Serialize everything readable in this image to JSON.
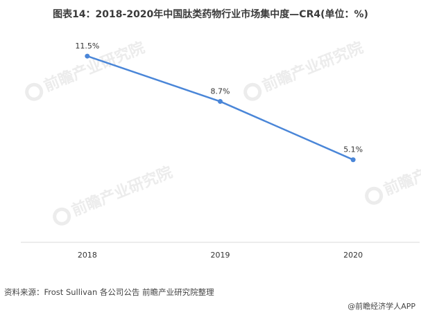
{
  "title": "图表14：2018-2020年中国肽类药物行业市场集中度—CR4(单位：%)",
  "watermark_text": "前瞻产业研究院",
  "source": "资料来源：Frost Sullivan 各公司公告 前瞻产业研究院整理",
  "brand": "@前瞻经济学人APP",
  "colors": {
    "line": "#4a86d8",
    "axis": "#d9d9d9",
    "watermark": "#ececec"
  },
  "chart_data": {
    "type": "line",
    "title": "图表14：2018-2020年中国肽类药物行业市场集中度—CR4(单位：%)",
    "categories": [
      "2018",
      "2019",
      "2020"
    ],
    "series": [
      {
        "values": [
          11.5,
          8.7,
          5.1
        ],
        "labels": [
          "11.5%",
          "8.7%",
          "5.1%"
        ]
      }
    ],
    "ylim": [
      0,
      13
    ],
    "grid": false,
    "legend": "none"
  }
}
